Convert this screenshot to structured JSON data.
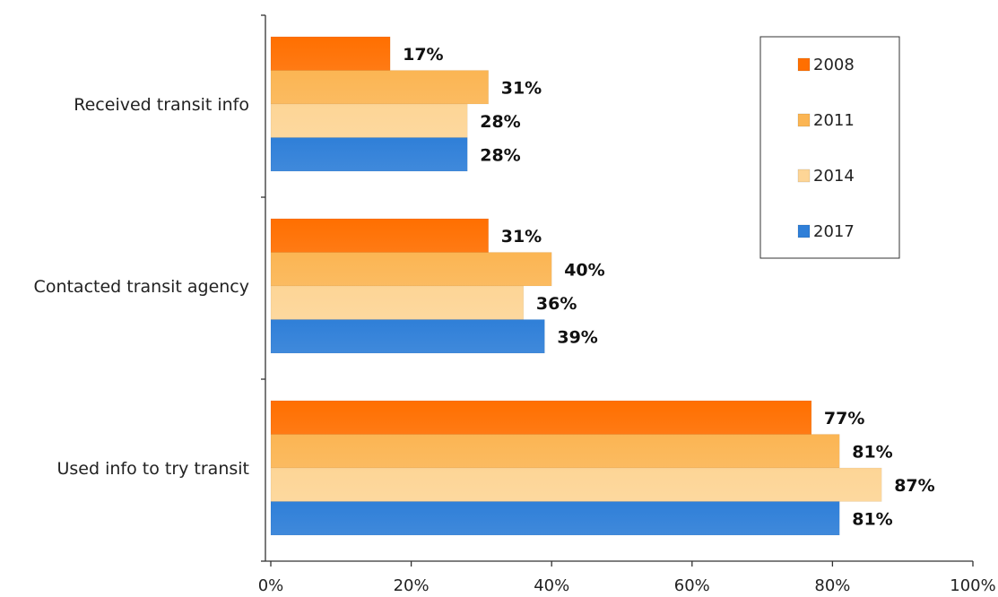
{
  "chart_data": {
    "type": "bar",
    "orientation": "horizontal",
    "categories": [
      "Received transit info",
      "Contacted transit agency",
      "Used info to try transit"
    ],
    "series": [
      {
        "name": "2008",
        "color": "#ff6f00",
        "values": [
          17,
          31,
          77
        ],
        "labels": [
          "17%",
          "31%",
          "77%"
        ]
      },
      {
        "name": "2011",
        "color": "#fbb553",
        "values": [
          31,
          40,
          81
        ],
        "labels": [
          "31%",
          "40%",
          "81%"
        ]
      },
      {
        "name": "2014",
        "color": "#fdd596",
        "values": [
          28,
          36,
          87
        ],
        "labels": [
          "28%",
          "36%",
          "87%"
        ]
      },
      {
        "name": "2017",
        "color": "#2f7fd8",
        "values": [
          28,
          39,
          81
        ],
        "labels": [
          "28%",
          "39%",
          "81%"
        ]
      }
    ],
    "xlim": [
      0,
      100
    ],
    "x_ticks": [
      0,
      20,
      40,
      60,
      80,
      100
    ],
    "x_tick_labels": [
      "0%",
      "20%",
      "40%",
      "60%",
      "80%",
      "100%"
    ],
    "grid": false,
    "legend_position": "top-right",
    "title": "",
    "xlabel": "",
    "ylabel": ""
  }
}
